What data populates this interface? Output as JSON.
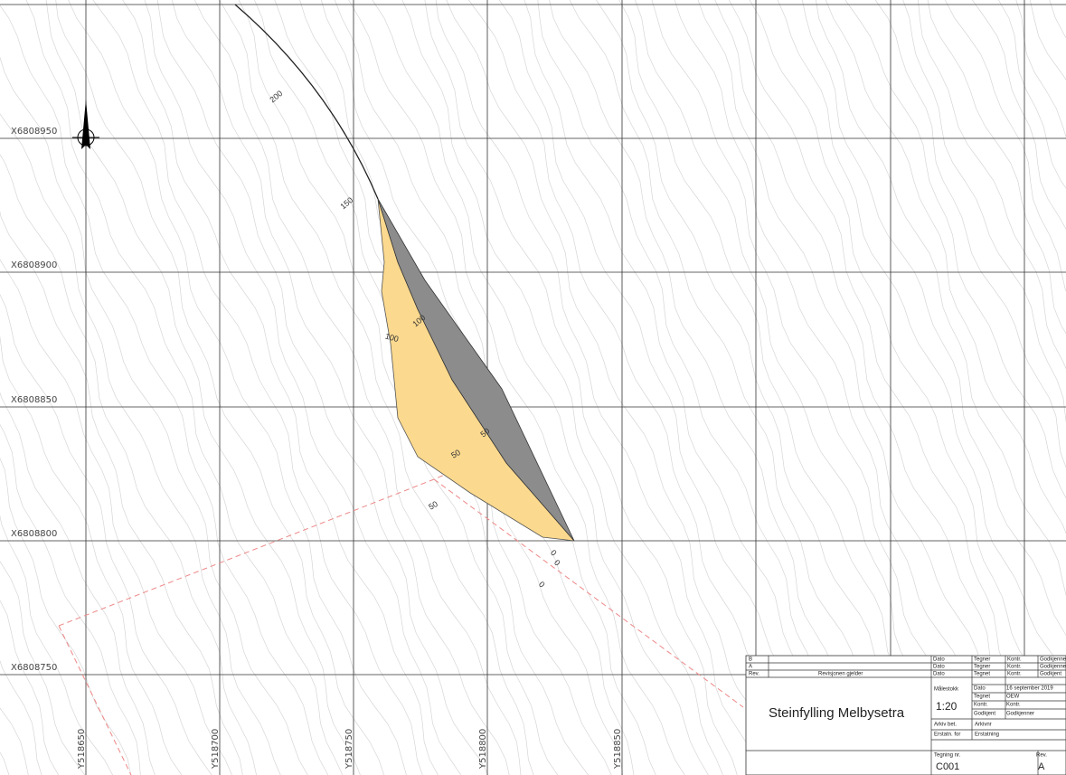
{
  "grid": {
    "x_labels": [
      "X6808950",
      "X6808900",
      "X6808850",
      "X6808800",
      "X6808750"
    ],
    "y_labels": [
      "Y518650",
      "Y518700",
      "Y518750",
      "Y518800",
      "Y518850"
    ]
  },
  "stations": [
    "200",
    "150",
    "100",
    "100",
    "50",
    "50",
    "50",
    "0",
    "0",
    "0"
  ],
  "title_block": {
    "rows": [
      [
        "B",
        "Dato",
        "Tegner",
        "Kontr.",
        "Godkjenner"
      ],
      [
        "A",
        "Dato",
        "Tegner",
        "Kontr.",
        "Godkjenner"
      ],
      [
        "Rev.",
        "Revisjonen gjelder",
        "Dato",
        "Tegnet",
        "Kontr.",
        "Godkjent"
      ]
    ],
    "scale_label": "Målestokk",
    "scale": "1:20",
    "title": "Steinfylling Melbysetra",
    "fields": [
      [
        "Dato",
        "16 september 2019"
      ],
      [
        "Tegnet",
        "OEW"
      ],
      [
        "Kontr.",
        "Kontr."
      ],
      [
        "Godkjent",
        "Godkjenner"
      ],
      [
        "Arkiv bet.",
        "Arkivnr"
      ],
      [
        "Erstatn. for",
        "Erstatning"
      ]
    ],
    "drawing_no_label": "Tegning nr.",
    "drawing_no": "C001",
    "rev_label": "Rev.",
    "rev": "A"
  }
}
